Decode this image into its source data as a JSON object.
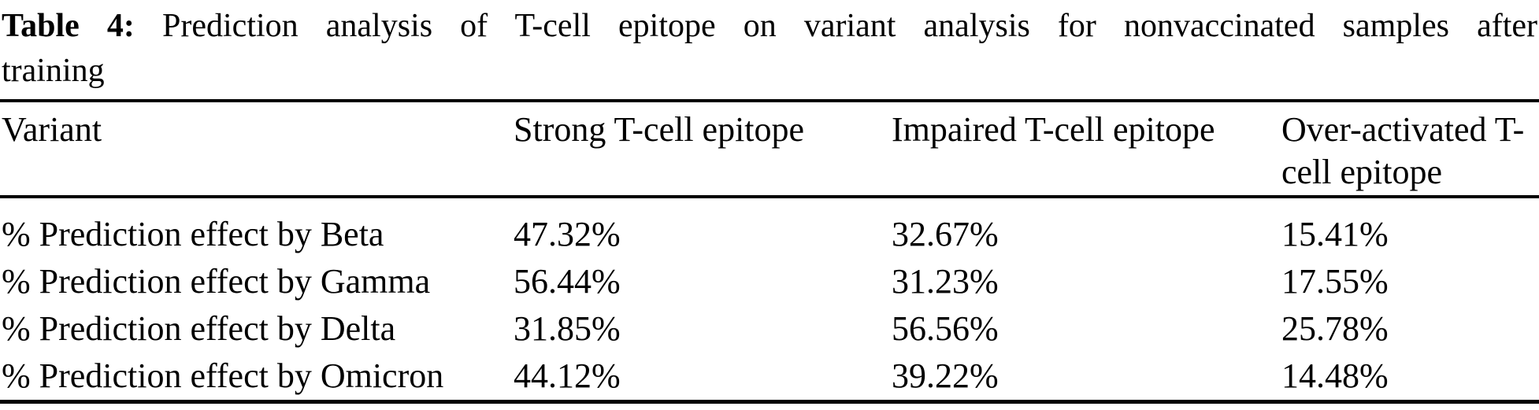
{
  "caption": {
    "label": "Table 4:",
    "text_line1": "Prediction analysis of T-cell epitope on variant analysis for nonvaccinated samples after",
    "text_line2": "training"
  },
  "table": {
    "headers": [
      "Variant",
      "Strong T-cell epitope",
      "Impaired T-cell epitope",
      "Over-activated T-cell epitope"
    ],
    "rows": [
      [
        "% Prediction effect by Beta",
        "47.32%",
        "32.67%",
        "15.41%"
      ],
      [
        "% Prediction effect by Gamma",
        "56.44%",
        "31.23%",
        "17.55%"
      ],
      [
        "% Prediction effect by Delta",
        "31.85%",
        "56.56%",
        "25.78%"
      ],
      [
        "% Prediction effect by Omicron",
        "44.12%",
        "39.22%",
        "14.48%"
      ]
    ]
  },
  "colors": {
    "text": "#000000",
    "background": "#ffffff",
    "rule": "#000000"
  }
}
